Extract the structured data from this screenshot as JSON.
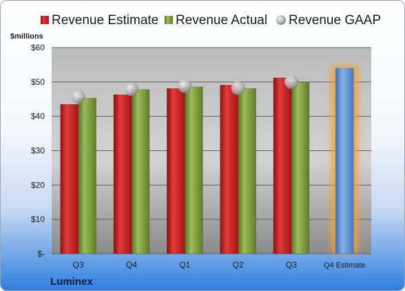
{
  "chart_data": {
    "type": "bar",
    "ylabel": "$millions",
    "ylim": [
      0,
      60
    ],
    "yticks": [
      {
        "value": 0,
        "label": "$-"
      },
      {
        "value": 10,
        "label": "$10"
      },
      {
        "value": 20,
        "label": "$20"
      },
      {
        "value": 30,
        "label": "$30"
      },
      {
        "value": 40,
        "label": "$40"
      },
      {
        "value": 50,
        "label": "$50"
      },
      {
        "value": 60,
        "label": "$60"
      }
    ],
    "categories": [
      "Q3",
      "Q4",
      "Q1",
      "Q2",
      "Q3",
      "Q4 Estimate"
    ],
    "grid": true,
    "legend_position": "top",
    "series": [
      {
        "name": "Revenue Estimate",
        "kind": "bar",
        "color": "#c81e1e",
        "values": [
          43.5,
          46.3,
          48.1,
          49.1,
          51.2,
          null
        ]
      },
      {
        "name": "Revenue Actual",
        "kind": "bar",
        "color": "#7a9a3a",
        "values": [
          45.3,
          47.8,
          48.6,
          48.1,
          49.9,
          null
        ]
      },
      {
        "name": "Revenue GAAP",
        "kind": "marker",
        "color": "#a9a9a9",
        "values": [
          45.7,
          47.9,
          48.8,
          48.2,
          50.0,
          null
        ]
      }
    ],
    "estimate": {
      "category_index": 5,
      "value": 54.0,
      "color": "#5b8fd1",
      "glow": "#f5a032"
    },
    "company": "Luminex"
  }
}
